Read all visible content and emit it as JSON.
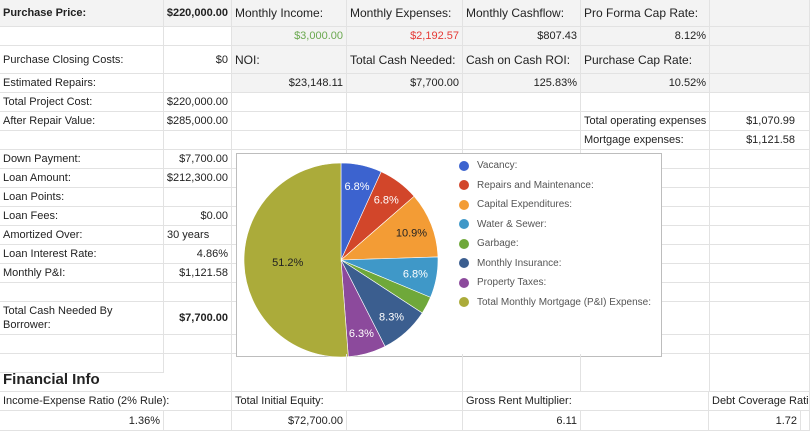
{
  "top": {
    "purchase_price_label": "Purchase Price:",
    "purchase_price": "$220,000.00",
    "closing_costs_label": "Purchase Closing Costs:",
    "closing_costs": "$0",
    "estimated_repairs_label": "Estimated Repairs:",
    "total_project_cost_label": "Total Project Cost:",
    "total_project_cost": "$220,000.00",
    "arv_label": "After Repair Value:",
    "arv": "$285,000.00"
  },
  "summary": {
    "monthly_income_label": "Monthly Income:",
    "monthly_income": "$3,000.00",
    "monthly_expenses_label": "Monthly Expenses:",
    "monthly_expenses": "$2,192.57",
    "monthly_cashflow_label": "Monthly Cashflow:",
    "monthly_cashflow": "$807.43",
    "pro_forma_cap_label": "Pro Forma Cap Rate:",
    "pro_forma_cap": "8.12%",
    "noi_label": "NOI:",
    "noi": "$23,148.11",
    "total_cash_needed_label": "Total Cash Needed:",
    "total_cash_needed": "$7,700.00",
    "coc_label": "Cash on Cash ROI:",
    "coc": "125.83%",
    "purchase_cap_label": "Purchase Cap Rate:",
    "purchase_cap": "10.52%",
    "total_opex_label": "Total operating expenses",
    "total_opex": "$1,070.99",
    "mortgage_exp_label": "Mortgage expenses:",
    "mortgage_exp": "$1,121.58"
  },
  "loan": {
    "down_payment_label": "Down Payment:",
    "down_payment": "$7,700.00",
    "loan_amount_label": "Loan Amount:",
    "loan_amount": "$212,300.00",
    "loan_points_label": "Loan Points:",
    "loan_fees_label": "Loan Fees:",
    "loan_fees": "$0.00",
    "amortized_label": "Amortized Over:",
    "amortized": "30 years",
    "interest_label": "Loan Interest Rate:",
    "interest": "4.86%",
    "pi_label": "Monthly P&I:",
    "pi": "$1,121.58",
    "cash_needed_label": "Total Cash Needed By Borrower:",
    "cash_needed": "$7,700.00"
  },
  "financial": {
    "title": "Financial Info",
    "ie_ratio_label": "Income-Expense Ratio (2% Rule):",
    "ie_ratio": "1.36%",
    "equity_label": "Total Initial Equity:",
    "equity": "$72,700.00",
    "grm_label": "Gross Rent Multiplier:",
    "grm": "6.11",
    "dcr_label": "Debt Coverage Ratio",
    "dcr": "1.72"
  },
  "chart_data": {
    "type": "pie",
    "title": "",
    "legend_position": "right",
    "categories": [
      "Vacancy:",
      "Repairs and Maintenance:",
      "Capital Expenditures:",
      "Water & Sewer:",
      "Garbage:",
      "Monthly Insurance:",
      "Property Taxes:",
      "Total Monthly Mortgage (P&I) Expense:"
    ],
    "values": [
      6.8,
      6.8,
      10.9,
      6.8,
      2.9,
      8.3,
      6.3,
      51.2
    ],
    "labels": [
      "6.8%",
      "6.8%",
      "10.9%",
      "6.8%",
      "",
      "8.3%",
      "6.3%",
      "51.2%"
    ],
    "colors": [
      "#3c63cf",
      "#d2462a",
      "#f39c35",
      "#3f98c8",
      "#6fa83a",
      "#3b5e8f",
      "#8c4a9c",
      "#abab3a"
    ],
    "label_colors": [
      "#ffffff",
      "#ffffff",
      "#222222",
      "#ffffff",
      "#ffffff",
      "#ffffff",
      "#ffffff",
      "#222222"
    ]
  }
}
